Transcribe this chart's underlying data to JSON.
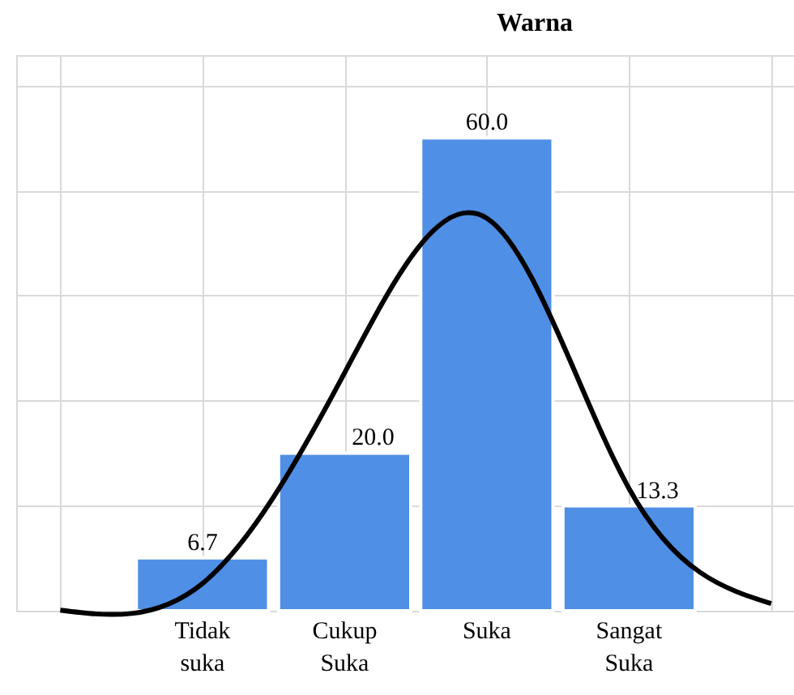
{
  "chart_data": {
    "type": "bar",
    "title": "Warna",
    "categories": [
      null,
      "Tidak suka",
      "Cukup Suka",
      "Suka",
      "Sangat Suka",
      null
    ],
    "values": [
      null,
      6.7,
      20.0,
      60.0,
      13.3,
      null
    ],
    "color": "#4f8fe6",
    "value_labels": [
      null,
      "6.7",
      "20.0",
      "60.0",
      "13.3",
      null
    ],
    "series": [
      {
        "type": "line",
        "color": "#000000",
        "values": [
          0.08,
          3.46,
          30.2,
          49.8,
          15.5,
          0.91
        ]
      }
    ],
    "ylim": [
      0,
      70.5
    ],
    "yticks": [
      {
        "value": 0,
        "label": null
      },
      {
        "value": 13.33,
        "label": null
      },
      {
        "value": 26.67,
        "label": null
      },
      {
        "value": 40,
        "label": null
      },
      {
        "value": 53.33,
        "label": null
      },
      {
        "value": 66.67,
        "label": null
      }
    ],
    "grid": true
  }
}
